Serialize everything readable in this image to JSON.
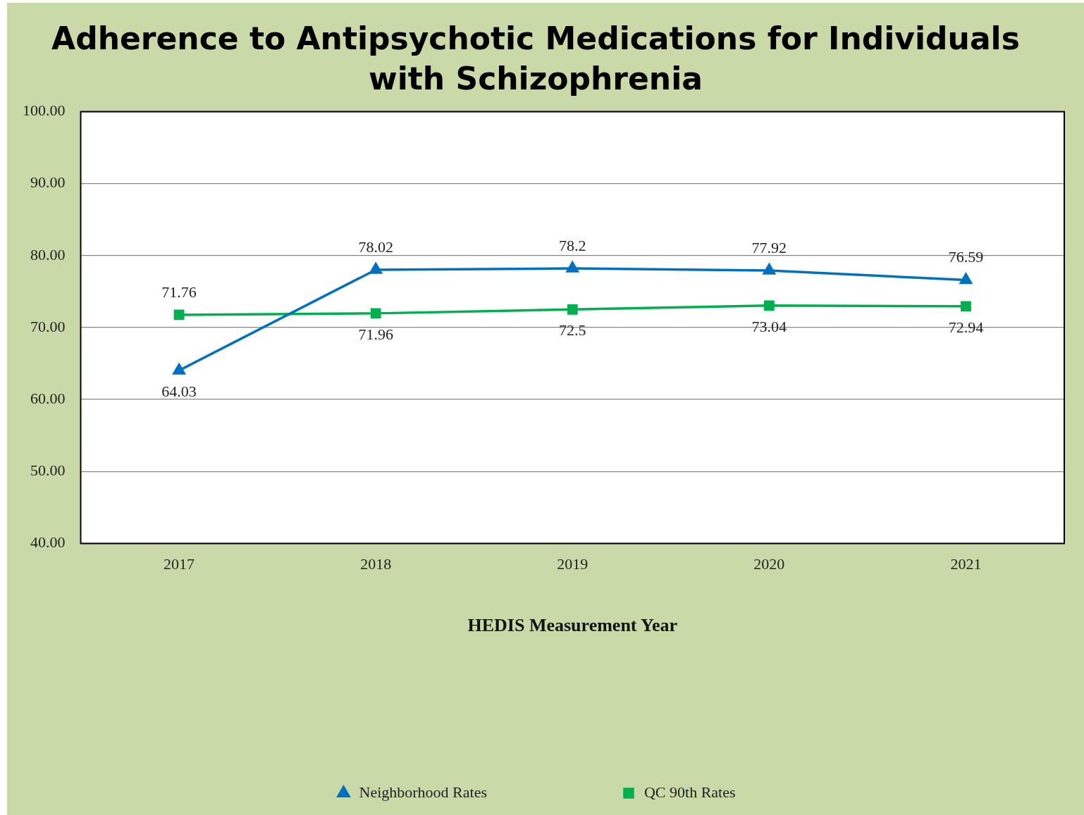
{
  "chart_data": {
    "type": "line",
    "title": "Adherence to Antipsychotic Medications for Individuals\nwith Schizophrenia",
    "xlabel": "HEDIS Measurement Year",
    "categories": [
      "2017",
      "2018",
      "2019",
      "2020",
      "2021"
    ],
    "series": [
      {
        "name": "Neighborhood Rates",
        "color": "#0070c0",
        "marker": "triangle",
        "values": [
          64.03,
          78.02,
          78.2,
          77.92,
          76.59
        ]
      },
      {
        "name": "QC 90th Rates",
        "color": "#00b050",
        "marker": "square",
        "values": [
          71.76,
          71.96,
          72.5,
          73.04,
          72.94
        ]
      }
    ],
    "ylim": [
      40,
      100
    ],
    "yticks": [
      {
        "value": 40,
        "label": "40.00"
      },
      {
        "value": 50,
        "label": "50.00"
      },
      {
        "value": 60,
        "label": "60.00"
      },
      {
        "value": 70,
        "label": "70.00"
      },
      {
        "value": 80,
        "label": "80.00"
      },
      {
        "value": 90,
        "label": "90.00"
      },
      {
        "value": 100,
        "label": "100.00"
      }
    ],
    "grid": "y",
    "legend": "bottom",
    "data_labels": true
  }
}
